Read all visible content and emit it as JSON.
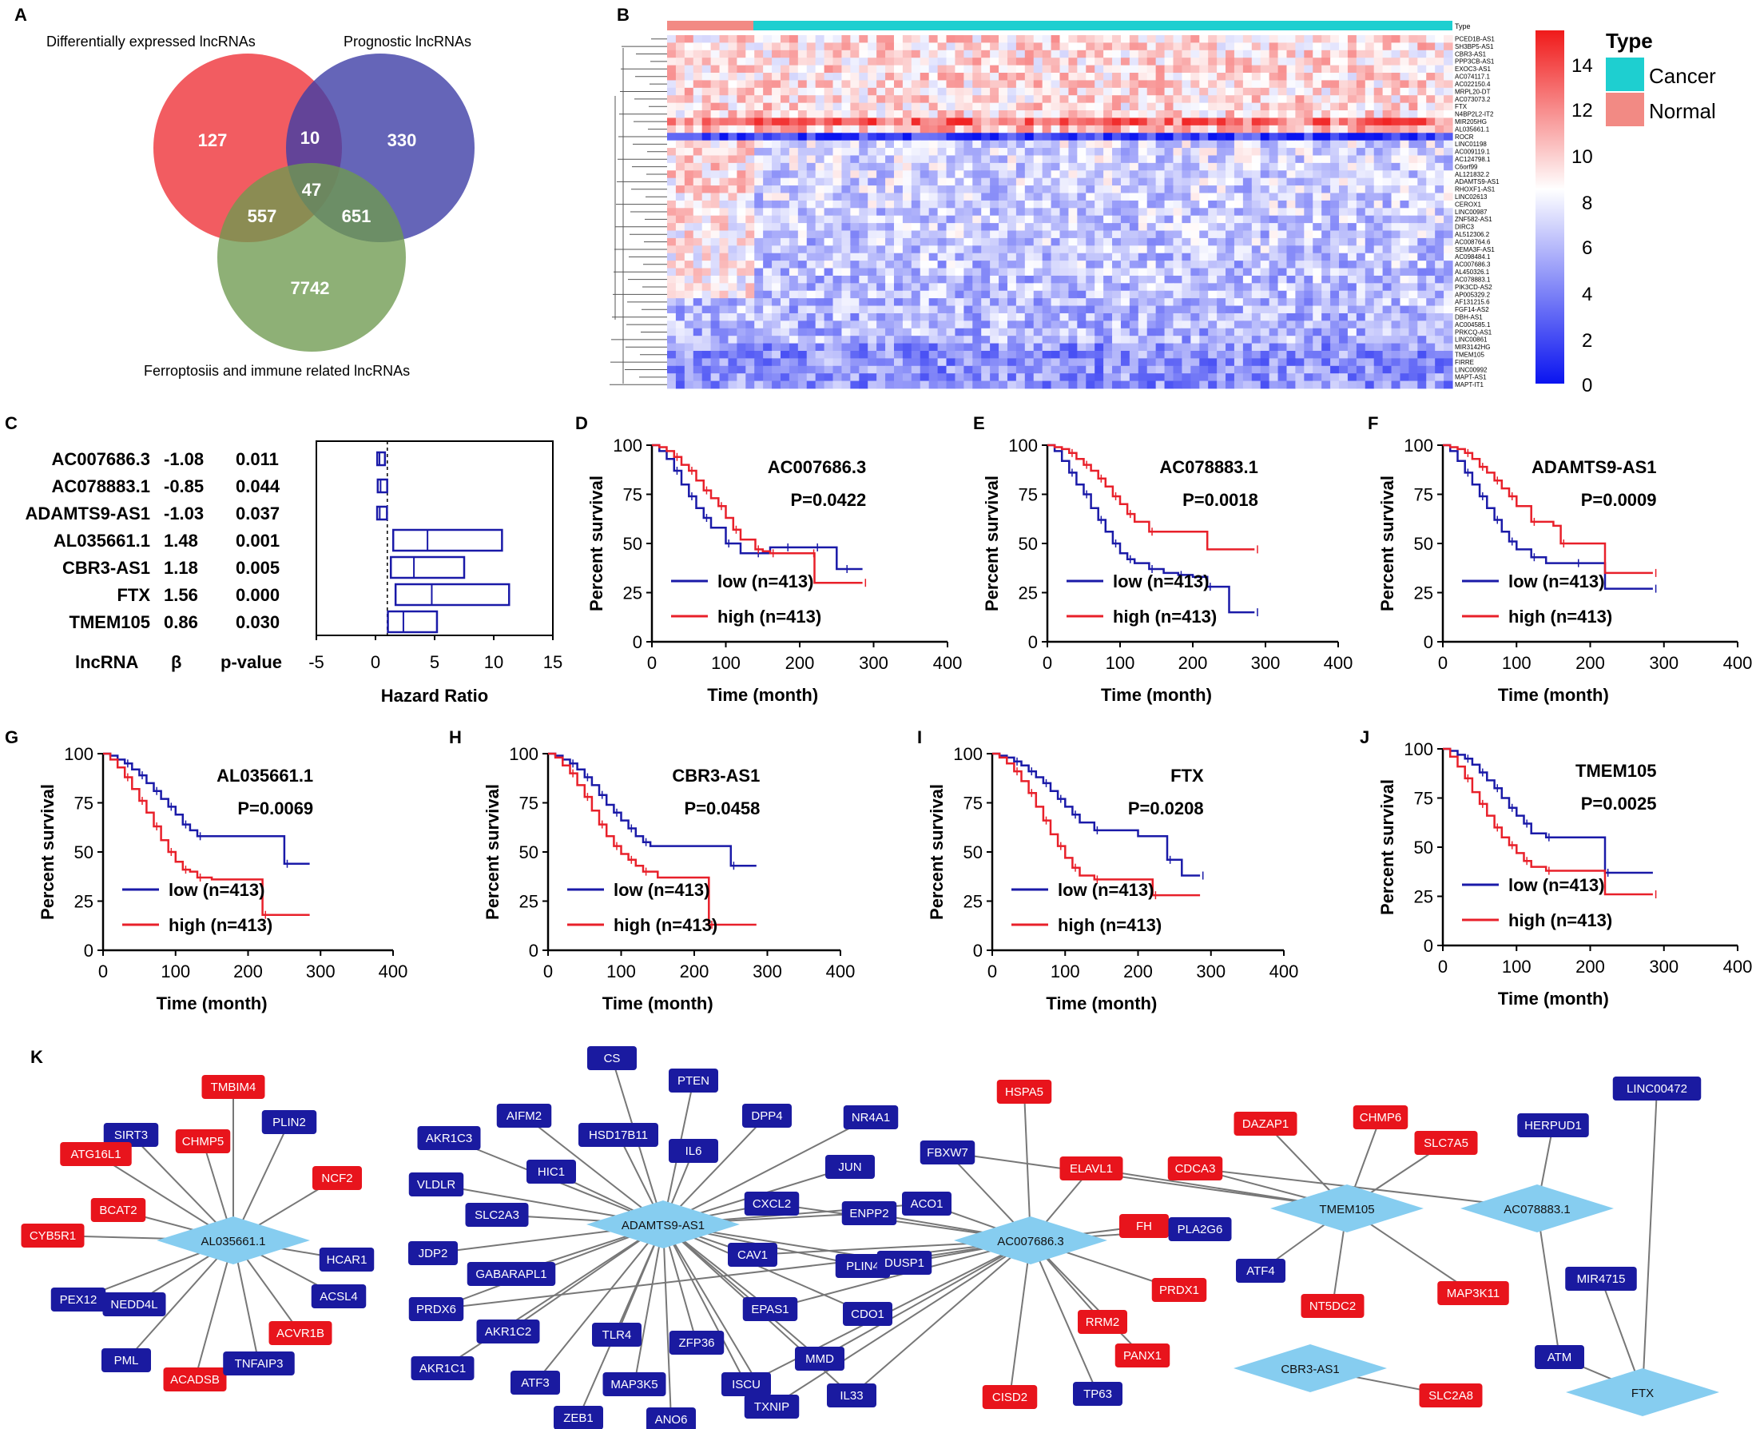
{
  "panel_letters": [
    "A",
    "B",
    "C",
    "D",
    "E",
    "F",
    "G",
    "H",
    "I",
    "J",
    "K"
  ],
  "colors": {
    "venn_red": "#f0464b",
    "venn_blue": "#3f3fa6",
    "venn_green": "#6e9a50",
    "km_low": "#1a1aa8",
    "km_high": "#e8202a",
    "cancer": "#1ecfd0",
    "normal": "#f28a84",
    "net_red": "#e8141c",
    "net_blue": "#1a1aa0",
    "net_lnc": "#86cdf0"
  },
  "venn": {
    "label_top_left": "Differentially expressed lncRNAs",
    "label_top_right": "Prognostic lncRNAs",
    "label_bottom": "Ferroptosiis and immune related  lncRNAs",
    "regions": {
      "deg_only": "127",
      "deg_prog": "10",
      "prog_only": "330",
      "all_three": "47",
      "deg_ferr": "557",
      "prog_ferr": "651",
      "ferr_only": "7742"
    }
  },
  "heatmap": {
    "type_label": "Type",
    "legend_title": "Type",
    "legend_items": [
      "Cancer",
      "Normal"
    ],
    "color_ticks": [
      "14",
      "12",
      "10",
      "8",
      "6",
      "4",
      "2",
      "0"
    ],
    "genes": [
      "PCED1B-AS1",
      "SH3BP5-AS1",
      "CBR3-AS1",
      "PPP3CB-AS1",
      "EXOC3-AS1",
      "AC074117.1",
      "AC022150.4",
      "MRPL20-DT",
      "AC073073.2",
      "FTX",
      "N4BP2L2-IT2",
      "MIR205HG",
      "AL035661.1",
      "ROCR",
      "LINC01198",
      "AC009119.1",
      "AC124798.1",
      "C6orf99",
      "AL121832.2",
      "ADAMTS9-AS1",
      "RHOXF1-AS1",
      "LINC02613",
      "CEROX1",
      "LINC00987",
      "ZNF582-AS1",
      "DIRC3",
      "AL512306.2",
      "AC008764.6",
      "SEMA3F-AS1",
      "AC098484.1",
      "AC007686.3",
      "AL450326.1",
      "AC078883.1",
      "PIK3CD-AS2",
      "AP005329.2",
      "AF131215.6",
      "FGF14-AS2",
      "DBH-AS1",
      "AC004585.1",
      "PRKCQ-AS1",
      "LINC00861",
      "MIR3142HG",
      "TMEM105",
      "FIRRE",
      "LINC00992",
      "MAPT-AS1",
      "MAPT-IT1"
    ]
  },
  "forest": {
    "col_headers": [
      "lncRNA",
      "β",
      "p-value"
    ],
    "rows": [
      {
        "name": "AC007686.3",
        "beta": "-1.08",
        "p": "0.011"
      },
      {
        "name": "AC078883.1",
        "beta": "-0.85",
        "p": "0.044"
      },
      {
        "name": "ADAMTS9-AS1",
        "beta": "-1.03",
        "p": "0.037"
      },
      {
        "name": "AL035661.1",
        "beta": "1.48",
        "p": "0.001"
      },
      {
        "name": "CBR3-AS1",
        "beta": "1.18",
        "p": "0.005"
      },
      {
        "name": "FTX",
        "beta": "1.56",
        "p": "0.000"
      },
      {
        "name": "TMEM105",
        "beta": "0.86",
        "p": "0.030"
      }
    ],
    "xlabel": "Hazard Ratio",
    "xticks": [
      "-5",
      "0",
      "5",
      "10",
      "15"
    ]
  },
  "km_common": {
    "ylabel": "Percent survival",
    "xlabel": "Time (month)",
    "xticks": [
      "0",
      "100",
      "200",
      "300",
      "400"
    ],
    "yticks": [
      "0",
      "25",
      "50",
      "75",
      "100"
    ],
    "legend_low": "low (n=413)",
    "legend_high": "high (n=413)"
  },
  "chart_data": [
    {
      "type": "bar",
      "panel": "C",
      "title": "Forest plot",
      "categories": [
        "AC007686.3",
        "AC078883.1",
        "ADAMTS9-AS1",
        "AL035661.1",
        "CBR3-AS1",
        "FTX",
        "TMEM105"
      ],
      "hr": [
        0.34,
        0.43,
        0.36,
        4.4,
        3.25,
        4.76,
        2.36
      ],
      "ci_low": [
        0.15,
        0.19,
        0.14,
        1.5,
        1.3,
        1.7,
        1.05
      ],
      "ci_high": [
        0.8,
        0.99,
        0.97,
        10.7,
        7.5,
        11.3,
        5.2
      ],
      "xlim": [
        -5,
        15
      ],
      "xlabel": "Hazard Ratio",
      "ref_line": 1
    },
    {
      "type": "line",
      "panel": "D",
      "title": "AC007686.3",
      "pvalue": "P=0.0422",
      "xlim": [
        0,
        400
      ],
      "ylim": [
        0,
        100
      ],
      "series": [
        {
          "name": "low (n=413)",
          "x": [
            0,
            10,
            20,
            30,
            40,
            50,
            60,
            70,
            80,
            100,
            120,
            140,
            160,
            180,
            200,
            220,
            250,
            260,
            285
          ],
          "y": [
            100,
            97,
            93,
            87,
            80,
            74,
            68,
            63,
            58,
            50,
            45,
            45,
            48,
            48,
            48,
            48,
            37,
            37,
            37
          ]
        },
        {
          "name": "high (n=413)",
          "x": [
            0,
            10,
            20,
            30,
            40,
            50,
            60,
            70,
            80,
            90,
            100,
            110,
            120,
            140,
            150,
            160,
            200,
            215,
            220,
            285
          ],
          "y": [
            100,
            99,
            97,
            94,
            90,
            87,
            82,
            77,
            73,
            69,
            63,
            57,
            52,
            47,
            46,
            45,
            45,
            45,
            30,
            30
          ]
        }
      ]
    },
    {
      "type": "line",
      "panel": "E",
      "title": "AC078883.1",
      "pvalue": "P=0.0018",
      "xlim": [
        0,
        400
      ],
      "ylim": [
        0,
        100
      ],
      "series": [
        {
          "name": "low (n=413)",
          "x": [
            0,
            10,
            20,
            30,
            40,
            50,
            60,
            70,
            80,
            90,
            100,
            110,
            120,
            140,
            160,
            180,
            200,
            220,
            250,
            285
          ],
          "y": [
            100,
            97,
            92,
            86,
            80,
            75,
            68,
            62,
            56,
            50,
            45,
            42,
            40,
            37,
            35,
            34,
            33,
            28,
            15,
            15
          ]
        },
        {
          "name": "high (n=413)",
          "x": [
            0,
            10,
            20,
            30,
            40,
            50,
            60,
            70,
            80,
            90,
            100,
            110,
            120,
            140,
            220,
            285
          ],
          "y": [
            100,
            99,
            98,
            96,
            93,
            90,
            87,
            83,
            79,
            74,
            70,
            65,
            61,
            56,
            47,
            47
          ]
        }
      ]
    },
    {
      "type": "line",
      "panel": "F",
      "title": "ADAMTS9-AS1",
      "pvalue": "P=0.0009",
      "xlim": [
        0,
        400
      ],
      "ylim": [
        0,
        100
      ],
      "series": [
        {
          "name": "low (n=413)",
          "x": [
            0,
            10,
            20,
            30,
            40,
            50,
            60,
            70,
            80,
            90,
            100,
            120,
            140,
            180,
            220,
            285
          ],
          "y": [
            100,
            97,
            92,
            86,
            80,
            74,
            68,
            62,
            56,
            51,
            47,
            43,
            40,
            40,
            27,
            27
          ]
        },
        {
          "name": "high (n=413)",
          "x": [
            0,
            10,
            20,
            30,
            40,
            50,
            60,
            70,
            80,
            90,
            100,
            120,
            150,
            160,
            220,
            285
          ],
          "y": [
            100,
            99,
            98,
            96,
            93,
            89,
            86,
            82,
            78,
            74,
            69,
            61,
            59,
            50,
            35,
            35
          ]
        }
      ]
    },
    {
      "type": "line",
      "panel": "G",
      "title": "AL035661.1",
      "pvalue": "P=0.0069",
      "xlim": [
        0,
        400
      ],
      "ylim": [
        0,
        100
      ],
      "series": [
        {
          "name": "low (n=413)",
          "x": [
            0,
            10,
            20,
            30,
            40,
            50,
            60,
            70,
            80,
            90,
            100,
            110,
            120,
            130,
            140,
            250,
            285
          ],
          "y": [
            100,
            99,
            97,
            95,
            92,
            89,
            85,
            81,
            77,
            73,
            69,
            64,
            61,
            58,
            58,
            44,
            44
          ]
        },
        {
          "name": "high (n=413)",
          "x": [
            0,
            10,
            20,
            30,
            40,
            50,
            60,
            70,
            80,
            90,
            100,
            110,
            120,
            130,
            150,
            220,
            285
          ],
          "y": [
            100,
            97,
            93,
            88,
            82,
            76,
            70,
            63,
            56,
            50,
            45,
            41,
            40,
            37,
            36,
            18,
            18
          ]
        }
      ]
    },
    {
      "type": "line",
      "panel": "H",
      "title": "CBR3-AS1",
      "pvalue": "P=0.0458",
      "xlim": [
        0,
        400
      ],
      "ylim": [
        0,
        100
      ],
      "series": [
        {
          "name": "low (n=413)",
          "x": [
            0,
            10,
            20,
            30,
            40,
            50,
            60,
            70,
            80,
            90,
            100,
            110,
            120,
            130,
            140,
            250,
            285
          ],
          "y": [
            100,
            99,
            97,
            95,
            92,
            88,
            84,
            79,
            74,
            70,
            66,
            62,
            58,
            55,
            53,
            43,
            43
          ]
        },
        {
          "name": "high (n=413)",
          "x": [
            0,
            10,
            20,
            30,
            40,
            50,
            60,
            70,
            80,
            90,
            100,
            110,
            120,
            130,
            150,
            220,
            285
          ],
          "y": [
            100,
            98,
            94,
            90,
            84,
            78,
            71,
            64,
            58,
            53,
            49,
            46,
            43,
            40,
            37,
            13,
            13
          ]
        }
      ]
    },
    {
      "type": "line",
      "panel": "I",
      "title": "FTX",
      "pvalue": "P=0.0208",
      "xlim": [
        0,
        400
      ],
      "ylim": [
        0,
        100
      ],
      "series": [
        {
          "name": "low (n=413)",
          "x": [
            0,
            10,
            20,
            30,
            40,
            50,
            60,
            70,
            80,
            90,
            100,
            110,
            120,
            140,
            200,
            240,
            260,
            285
          ],
          "y": [
            100,
            99,
            98,
            96,
            94,
            91,
            88,
            85,
            81,
            77,
            73,
            69,
            65,
            61,
            58,
            46,
            38,
            38
          ]
        },
        {
          "name": "high (n=413)",
          "x": [
            0,
            10,
            20,
            30,
            40,
            50,
            60,
            70,
            80,
            90,
            100,
            110,
            120,
            140,
            160,
            220,
            285
          ],
          "y": [
            100,
            98,
            95,
            91,
            86,
            80,
            73,
            66,
            59,
            53,
            47,
            42,
            38,
            36,
            36,
            28,
            28
          ]
        }
      ]
    },
    {
      "type": "line",
      "panel": "J",
      "title": "TMEM105",
      "pvalue": "P=0.0025",
      "xlim": [
        0,
        400
      ],
      "ylim": [
        0,
        100
      ],
      "series": [
        {
          "name": "low (n=413)",
          "x": [
            0,
            10,
            20,
            30,
            40,
            50,
            60,
            70,
            80,
            90,
            100,
            110,
            120,
            140,
            180,
            220,
            285
          ],
          "y": [
            100,
            99,
            97,
            95,
            92,
            88,
            84,
            80,
            75,
            70,
            66,
            62,
            57,
            55,
            55,
            37,
            37
          ]
        },
        {
          "name": "high (n=413)",
          "x": [
            0,
            10,
            20,
            30,
            40,
            50,
            60,
            70,
            80,
            90,
            100,
            110,
            120,
            140,
            220,
            285
          ],
          "y": [
            100,
            96,
            91,
            85,
            78,
            72,
            66,
            60,
            55,
            51,
            47,
            43,
            40,
            38,
            26,
            26
          ]
        }
      ]
    }
  ],
  "network": {
    "hubs": [
      "AL035661.1",
      "ADAMTS9-AS1",
      "AC007686.3",
      "TMEM105",
      "AC078883.1",
      "CBR3-AS1",
      "FTX"
    ],
    "nodes": [
      "SIRT3",
      "TMBIM4",
      "PLIN2",
      "ATG16L1",
      "CHMP5",
      "NCF2",
      "BCAT2",
      "CYB5R1",
      "HCAR1",
      "PEX12",
      "NEDD4L",
      "ACSL4",
      "ACVR1B",
      "PML",
      "ACADSB",
      "TNFAIP3",
      "AIFM2",
      "CS",
      "PTEN",
      "AKR1C3",
      "HSD17B11",
      "IL6",
      "DPP4",
      "NR4A1",
      "HIC1",
      "JUN",
      "VLDLR",
      "SLC2A3",
      "CXCL2",
      "ENPP2",
      "ACO1",
      "FBXW7",
      "JDP2",
      "GABARAPL1",
      "CAV1",
      "PLIN4",
      "DUSP1",
      "PRDX6",
      "AKR1C2",
      "EPAS1",
      "CDO1",
      "AKR1C1",
      "TLR4",
      "ZFP36",
      "ATF3",
      "MMD",
      "MAP3K5",
      "ISCU",
      "IL33",
      "ZEB1",
      "TXNIP",
      "ANO6",
      "HSPA5",
      "ELAVL1",
      "CDCA3",
      "FH",
      "PLA2G6",
      "PRDX1",
      "RRM2",
      "PANX1",
      "CISD2",
      "TP63",
      "DAZAP1",
      "CHMP6",
      "SLC7A5",
      "HERPUD1",
      "LINC00472",
      "ATF4",
      "NT5DC2",
      "MAP3K11",
      "MIR4715",
      "ATM",
      "SLC2A8"
    ]
  }
}
